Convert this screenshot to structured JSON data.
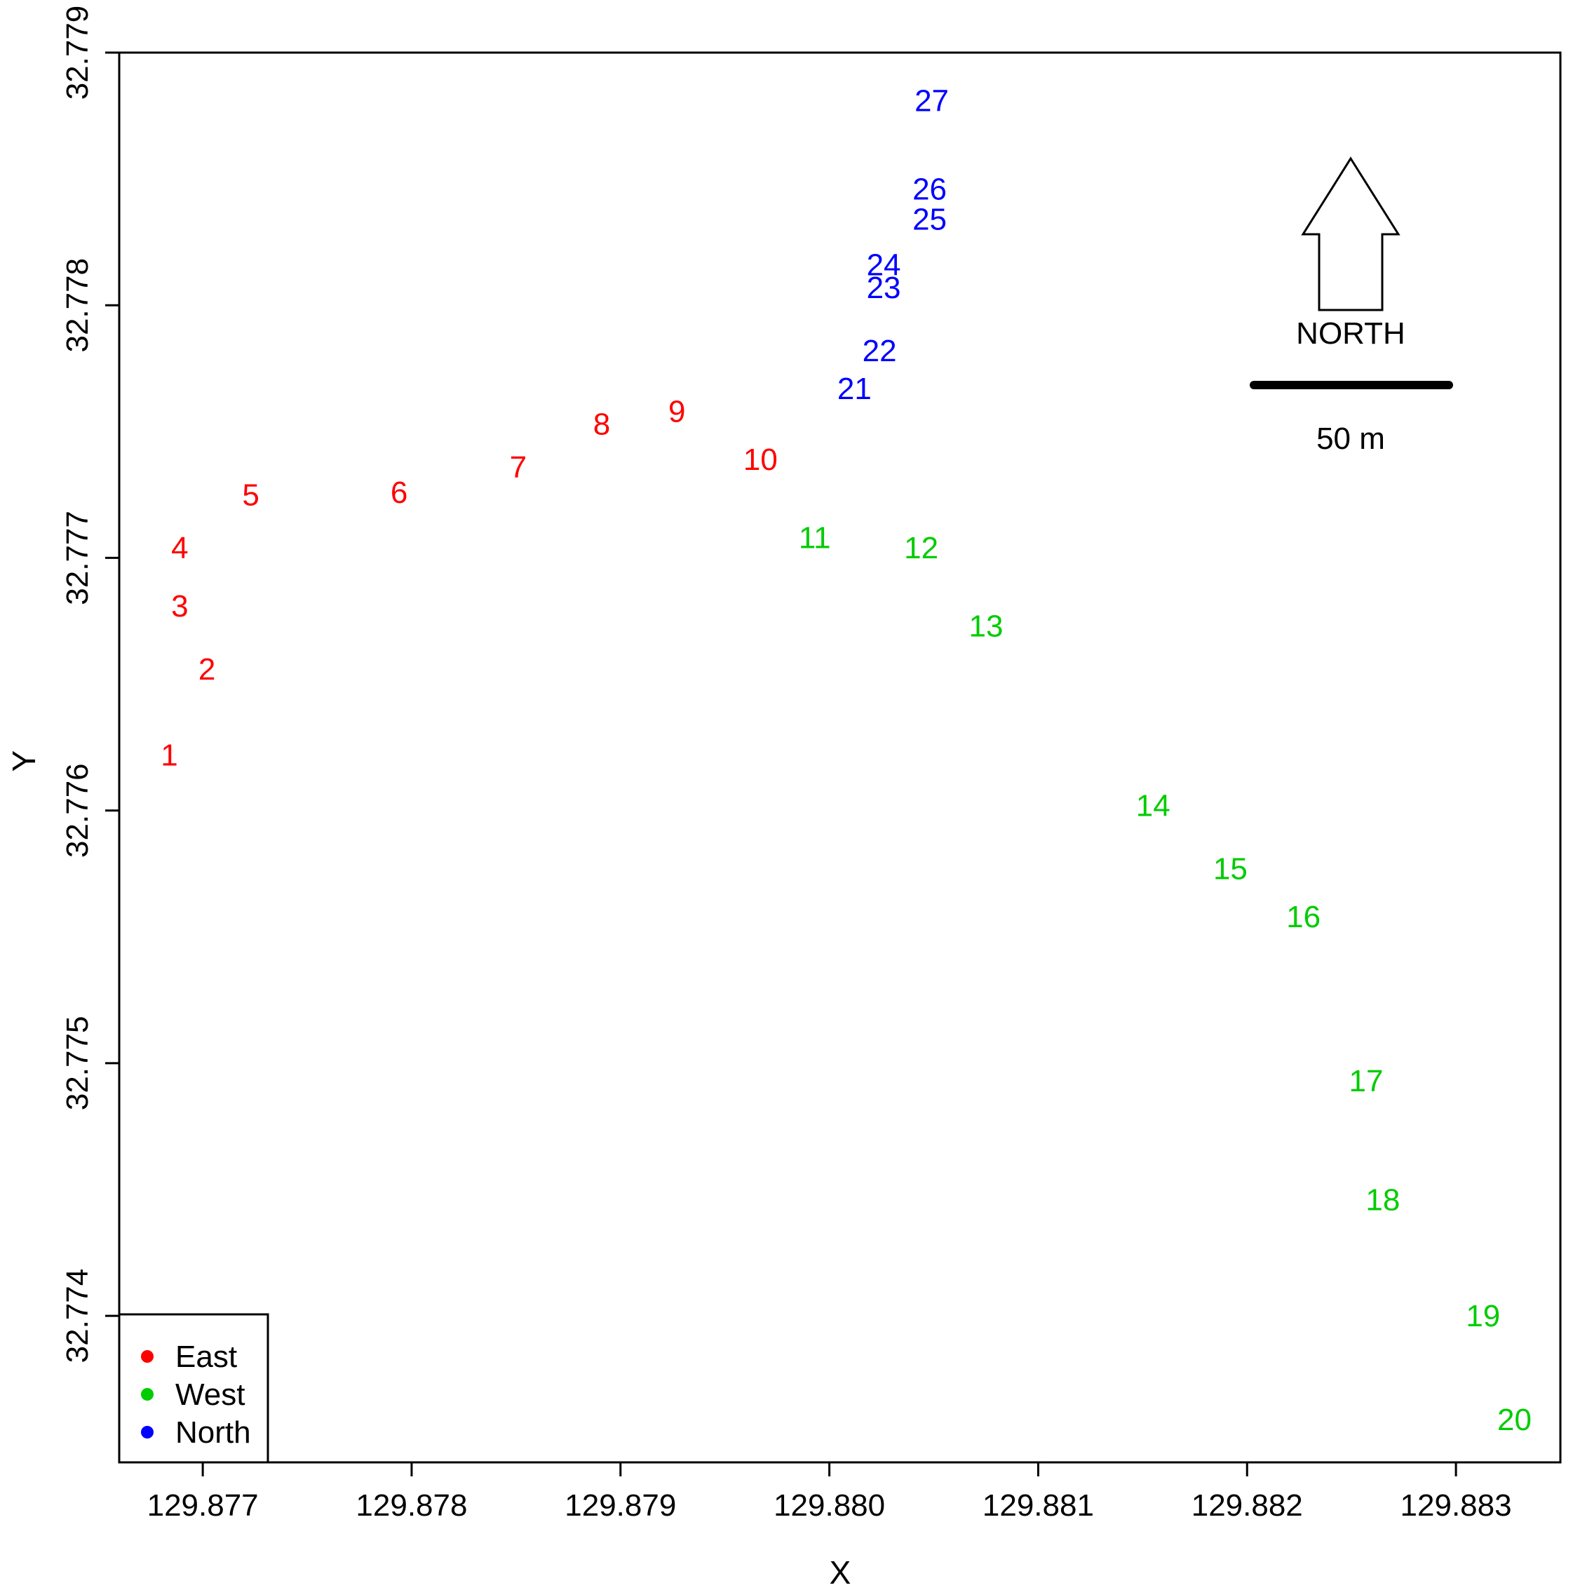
{
  "chart_data": {
    "type": "scatter",
    "title": "",
    "xlabel": "X",
    "ylabel": "Y",
    "xlim": [
      129.8766,
      129.8835
    ],
    "ylim": [
      32.77342,
      32.779
    ],
    "grid": false,
    "x_ticks": [
      {
        "value": 129.877,
        "label": "129.877"
      },
      {
        "value": 129.878,
        "label": "129.878"
      },
      {
        "value": 129.879,
        "label": "129.879"
      },
      {
        "value": 129.88,
        "label": "129.880"
      },
      {
        "value": 129.881,
        "label": "129.881"
      },
      {
        "value": 129.882,
        "label": "129.882"
      },
      {
        "value": 129.883,
        "label": "129.883"
      }
    ],
    "y_ticks": [
      {
        "value": 32.774,
        "label": "32.774"
      },
      {
        "value": 32.775,
        "label": "32.775"
      },
      {
        "value": 32.776,
        "label": "32.776"
      },
      {
        "value": 32.777,
        "label": "32.777"
      },
      {
        "value": 32.778,
        "label": "32.778"
      },
      {
        "value": 32.779,
        "label": "32.779"
      }
    ],
    "series": [
      {
        "name": "East",
        "color": "#ff0000",
        "points": [
          {
            "label": "1",
            "x": 129.87684,
            "y": 32.77622
          },
          {
            "label": "2",
            "x": 129.87702,
            "y": 32.77656
          },
          {
            "label": "3",
            "x": 129.87689,
            "y": 32.77681
          },
          {
            "label": "4",
            "x": 129.87689,
            "y": 32.77704
          },
          {
            "label": "5",
            "x": 129.87723,
            "y": 32.77725
          },
          {
            "label": "6",
            "x": 129.87794,
            "y": 32.77726
          },
          {
            "label": "7",
            "x": 129.87851,
            "y": 32.77736
          },
          {
            "label": "8",
            "x": 129.87891,
            "y": 32.77753
          },
          {
            "label": "9",
            "x": 129.87927,
            "y": 32.77758
          },
          {
            "label": "10",
            "x": 129.87967,
            "y": 32.77739
          }
        ]
      },
      {
        "name": "West",
        "color": "#00cc00",
        "points": [
          {
            "label": "11",
            "x": 129.87993,
            "y": 32.77708
          },
          {
            "label": "12",
            "x": 129.88044,
            "y": 32.77704
          },
          {
            "label": "13",
            "x": 129.88075,
            "y": 32.77673
          },
          {
            "label": "14",
            "x": 129.88155,
            "y": 32.77602
          },
          {
            "label": "15",
            "x": 129.88192,
            "y": 32.77577
          },
          {
            "label": "16",
            "x": 129.88227,
            "y": 32.77558
          },
          {
            "label": "17",
            "x": 129.88257,
            "y": 32.77493
          },
          {
            "label": "18",
            "x": 129.88265,
            "y": 32.77446
          },
          {
            "label": "19",
            "x": 129.88313,
            "y": 32.774
          },
          {
            "label": "20",
            "x": 129.88328,
            "y": 32.77359
          }
        ]
      },
      {
        "name": "North",
        "color": "#0000ff",
        "points": [
          {
            "label": "21",
            "x": 129.88012,
            "y": 32.77767
          },
          {
            "label": "22",
            "x": 129.88024,
            "y": 32.77782
          },
          {
            "label": "23",
            "x": 129.88026,
            "y": 32.77807
          },
          {
            "label": "24",
            "x": 129.88026,
            "y": 32.77816
          },
          {
            "label": "25",
            "x": 129.88048,
            "y": 32.77834
          },
          {
            "label": "26",
            "x": 129.88048,
            "y": 32.77846
          },
          {
            "label": "27",
            "x": 129.88049,
            "y": 32.77881
          }
        ]
      }
    ],
    "legend": {
      "position": "bottom-left",
      "entries": [
        {
          "label": "East",
          "color": "#ff0000"
        },
        {
          "label": "West",
          "color": "#00cc00"
        },
        {
          "label": "North",
          "color": "#0000ff"
        }
      ]
    },
    "annotations": {
      "north_arrow_label": "NORTH",
      "scale_bar_label": "50 m"
    }
  }
}
